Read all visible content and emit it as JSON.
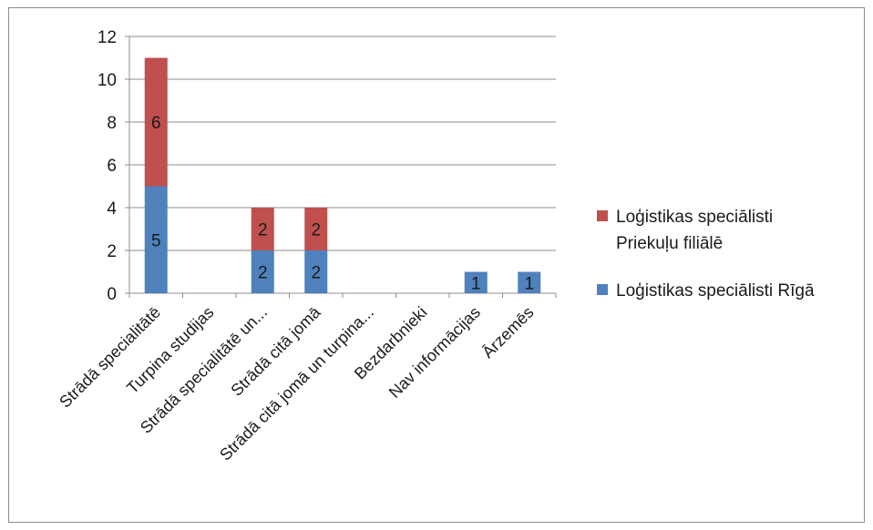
{
  "chart_data": {
    "type": "bar",
    "stacked": true,
    "categories": [
      "Strādā specialitātē",
      "Turpina studijas",
      "Strādā specialitātē un...",
      "Strādā citā jomā",
      "Strādā citā jomā un turpina...",
      "Bezdarbnieki",
      "Nav informācijas",
      "Ārzemēs"
    ],
    "series": [
      {
        "name": "Loģistikas speciālisti Rīgā",
        "color": "#4f81bd",
        "values": [
          5,
          0,
          2,
          2,
          0,
          0,
          1,
          1
        ]
      },
      {
        "name": "Loģistikas speciālisti Priekuļu filiālē",
        "color": "#c0504d",
        "values": [
          6,
          0,
          2,
          2,
          0,
          0,
          0,
          0
        ]
      }
    ],
    "legend_entries": [
      {
        "series": 1,
        "lines": [
          "Loģistikas speciālisti",
          "Priekuļu filiālē"
        ]
      },
      {
        "series": 0,
        "lines": [
          "Loģistikas speciālisti Rīgā"
        ]
      }
    ],
    "ylim": [
      0,
      12
    ],
    "yticks": [
      "0",
      "2",
      "4",
      "6",
      "8",
      "10",
      "12"
    ],
    "title": "",
    "xlabel": "",
    "ylabel": "",
    "grid": true,
    "legend_position": "right",
    "data_labels": true
  }
}
